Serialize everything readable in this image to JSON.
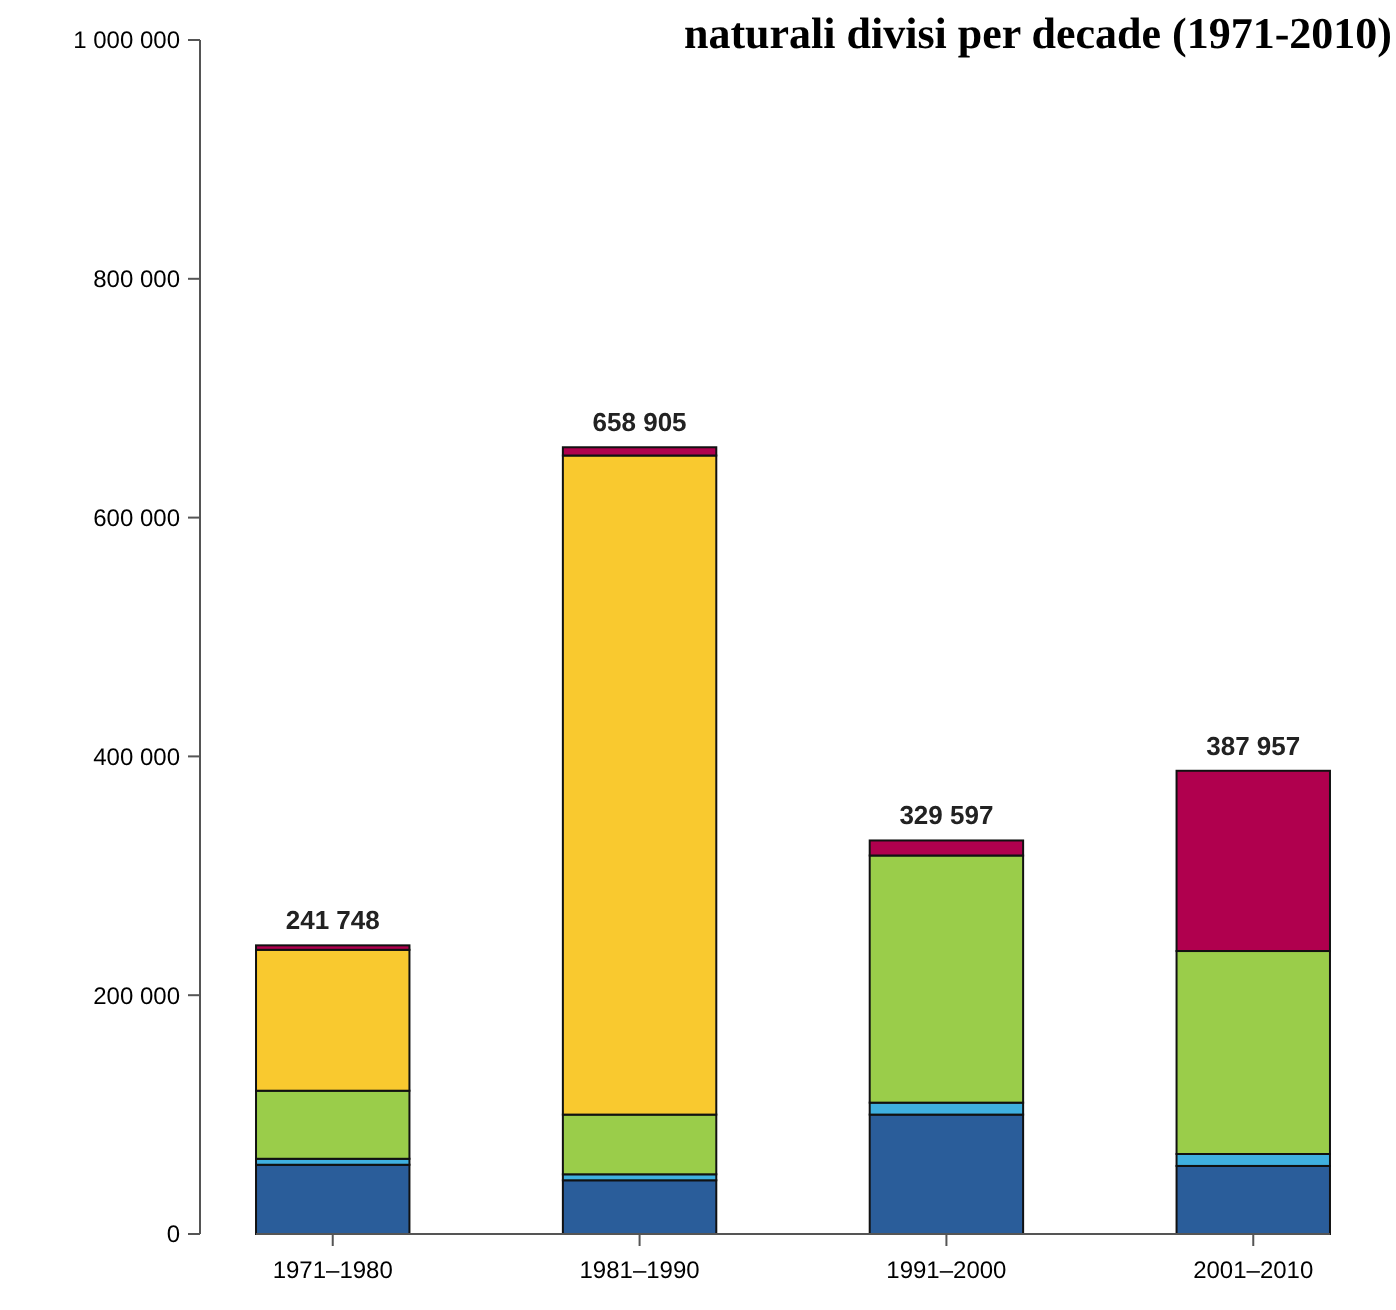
{
  "chart_data": {
    "type": "bar",
    "title": "naturali divisi per decade (1971-2010)",
    "categories": [
      "1971–1980",
      "1981–1990",
      "1991–2000",
      "2001–2010"
    ],
    "stacked": true,
    "series": [
      {
        "color": "#2a5d9a",
        "values": [
          58000,
          45000,
          100000,
          57000
        ]
      },
      {
        "color": "#3fb0e0",
        "values": [
          5000,
          5000,
          10000,
          10000
        ]
      },
      {
        "color": "#9acd4a",
        "values": [
          57000,
          50000,
          207000,
          170000
        ]
      },
      {
        "color": "#f9c92f",
        "values": [
          118000,
          552000,
          0,
          0
        ]
      },
      {
        "color": "#b0004e",
        "values": [
          3748,
          6905,
          12597,
          150957
        ]
      }
    ],
    "totals": [
      "241 748",
      "658 905",
      "329 597",
      "387 957"
    ],
    "ylim": [
      0,
      1000000
    ],
    "yticks": [
      {
        "value": 0,
        "label": "0"
      },
      {
        "value": 200000,
        "label": "200 000"
      },
      {
        "value": 400000,
        "label": "400 000"
      },
      {
        "value": 600000,
        "label": "600 000"
      },
      {
        "value": 800000,
        "label": "800 000"
      },
      {
        "value": 1000000,
        "label": "1 000 000"
      }
    ],
    "grid": false
  }
}
